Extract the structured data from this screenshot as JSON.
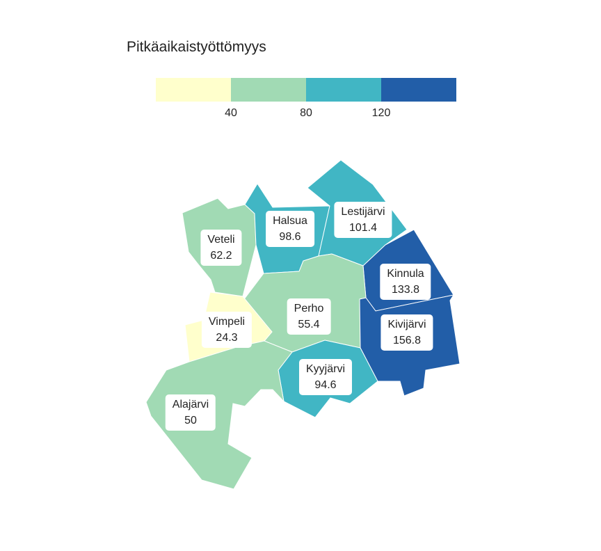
{
  "legend": {
    "title": "Pitkäaikaistyöttömyys",
    "colors": [
      "#ffffcc",
      "#a1dab4",
      "#41b6c4",
      "#225ea8"
    ],
    "ticks": [
      "40",
      "80",
      "120"
    ]
  },
  "regions": [
    {
      "name": "Veteli",
      "value": "62.2",
      "color": "#a1dab4"
    },
    {
      "name": "Halsua",
      "value": "98.6",
      "color": "#41b6c4"
    },
    {
      "name": "Lestijärvi",
      "value": "101.4",
      "color": "#41b6c4"
    },
    {
      "name": "Kinnula",
      "value": "133.8",
      "color": "#225ea8"
    },
    {
      "name": "Perho",
      "value": "55.4",
      "color": "#a1dab4"
    },
    {
      "name": "Vimpeli",
      "value": "24.3",
      "color": "#ffffcc"
    },
    {
      "name": "Kivijärvi",
      "value": "156.8",
      "color": "#225ea8"
    },
    {
      "name": "Kyyjärvi",
      "value": "94.6",
      "color": "#41b6c4"
    },
    {
      "name": "Alajärvi",
      "value": "50",
      "color": "#a1dab4"
    }
  ]
}
